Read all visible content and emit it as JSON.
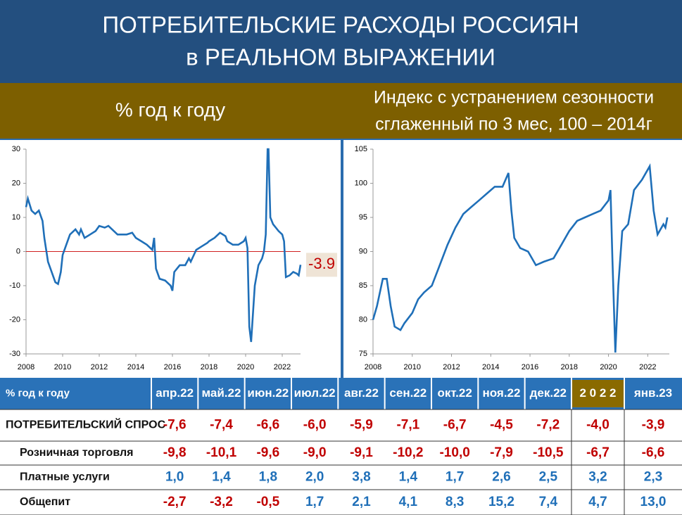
{
  "header": {
    "title": [
      "ПОТРЕБИТЕЛЬСКИЕ РАСХОДЫ РОССИЯН",
      "в РЕАЛЬНОМ ВЫРАЖЕНИИ"
    ]
  },
  "chart_data": [
    {
      "type": "line",
      "subtitle": [
        "% год к году"
      ],
      "x": [
        2008.0,
        2008.1,
        2008.3,
        2008.5,
        2008.7,
        2008.9,
        2009.0,
        2009.2,
        2009.4,
        2009.6,
        2009.75,
        2009.9,
        2010.0,
        2010.2,
        2010.4,
        2010.7,
        2010.9,
        2011.0,
        2011.2,
        2011.5,
        2011.8,
        2012.0,
        2012.3,
        2012.5,
        2012.8,
        2013.0,
        2013.5,
        2013.8,
        2014.0,
        2014.3,
        2014.6,
        2014.9,
        2015.0,
        2015.1,
        2015.3,
        2015.6,
        2015.9,
        2016.0,
        2016.1,
        2016.4,
        2016.7,
        2016.9,
        2017.0,
        2017.3,
        2017.6,
        2017.9,
        2018.0,
        2018.3,
        2018.6,
        2018.9,
        2019.0,
        2019.3,
        2019.6,
        2019.9,
        2020.0,
        2020.1,
        2020.2,
        2020.3,
        2020.5,
        2020.7,
        2020.9,
        2021.0,
        2021.1,
        2021.2,
        2021.25,
        2021.35,
        2021.5,
        2021.8,
        2022.0,
        2022.1,
        2022.2,
        2022.4,
        2022.6,
        2022.8,
        2022.9,
        2023.0
      ],
      "series": [
        {
          "color": "#1f6fb8",
          "values": [
            13,
            15.5,
            12,
            11,
            12,
            9,
            4,
            -3,
            -6,
            -9,
            -9.5,
            -6,
            -1,
            2,
            5,
            6.5,
            5,
            6.5,
            4,
            5,
            6,
            7.5,
            7,
            7.5,
            6,
            5,
            5,
            5.5,
            4,
            3,
            2,
            0.5,
            4,
            -5,
            -8,
            -8.5,
            -10,
            -11.5,
            -6,
            -4,
            -4,
            -2,
            -3,
            0.5,
            1.5,
            2.5,
            3,
            4,
            5.5,
            4.5,
            3,
            2,
            2,
            3,
            4,
            1,
            -22,
            -26.5,
            -10,
            -4,
            -2,
            0,
            5,
            30,
            30,
            10,
            8,
            6,
            5,
            3,
            -7.5,
            -7,
            -6,
            -6.5,
            -7,
            -3.9
          ]
        }
      ],
      "xlim": [
        2008,
        2023
      ],
      "ylim": [
        -30,
        30
      ],
      "xticks": [
        2008,
        2010,
        2012,
        2014,
        2016,
        2018,
        2020,
        2022
      ],
      "yticks": [
        -30,
        -20,
        -10,
        0,
        10,
        20,
        30
      ],
      "reference_line": {
        "value": 0,
        "color": "#d02020"
      },
      "annotation": -3.9
    },
    {
      "type": "line",
      "subtitle": [
        "Индекс с устранением сезонности",
        "сглаженный по 3 мес, 100 – 2014г"
      ],
      "x": [
        2008.0,
        2008.2,
        2008.5,
        2008.7,
        2008.9,
        2009.1,
        2009.4,
        2009.6,
        2010.0,
        2010.3,
        2010.6,
        2011.0,
        2011.4,
        2011.8,
        2012.2,
        2012.6,
        2013.0,
        2013.4,
        2013.8,
        2014.2,
        2014.6,
        2014.9,
        2015.05,
        2015.2,
        2015.5,
        2015.9,
        2016.3,
        2016.7,
        2017.2,
        2017.6,
        2018.0,
        2018.4,
        2018.8,
        2019.2,
        2019.6,
        2020.0,
        2020.1,
        2020.2,
        2020.35,
        2020.5,
        2020.7,
        2021.0,
        2021.3,
        2021.7,
        2022.1,
        2022.3,
        2022.5,
        2022.8,
        2022.9,
        2023.0
      ],
      "series": [
        {
          "color": "#1f6fb8",
          "values": [
            80,
            82,
            86,
            86,
            82,
            79,
            78.5,
            79.5,
            81,
            83,
            84,
            85,
            88,
            91,
            93.5,
            95.5,
            96.5,
            97.5,
            98.5,
            99.5,
            99.5,
            101.5,
            96,
            92,
            90.5,
            90,
            88,
            88.5,
            89,
            91,
            93,
            94.5,
            95,
            95.5,
            96,
            97.5,
            99,
            89,
            75.2,
            85,
            93,
            94,
            99,
            100.5,
            102.5,
            96,
            92.5,
            94,
            93.5,
            95
          ]
        }
      ],
      "xlim": [
        2008,
        2023.1
      ],
      "ylim": [
        75,
        105
      ],
      "xticks": [
        2008,
        2010,
        2012,
        2014,
        2016,
        2018,
        2020,
        2022
      ],
      "yticks": [
        75,
        80,
        85,
        90,
        95,
        100,
        105
      ]
    }
  ],
  "table": {
    "columns": [
      "% год к году",
      "апр.22",
      "май.22",
      "июн.22",
      "июл.22",
      "авг.22",
      "сен.22",
      "окт.22",
      "ноя.22",
      "дек.22",
      "2 0 2 2",
      "янв.23"
    ],
    "rows": [
      [
        "ПОТРЕБИТЕЛЬСКИЙ СПРОС",
        "-7,6",
        "-7,4",
        "-6,6",
        "-6,0",
        "-5,9",
        "-7,1",
        "-6,7",
        "-4,5",
        "-7,2",
        "-4,0",
        "-3,9"
      ],
      [
        "Розничная торговля",
        "-9,8",
        "-10,1",
        "-9,6",
        "-9,0",
        "-9,1",
        "-10,2",
        "-10,0",
        "-7,9",
        "-10,5",
        "-6,7",
        "-6,6"
      ],
      [
        "Платные услуги",
        "1,0",
        "1,4",
        "1,8",
        "2,0",
        "3,8",
        "1,4",
        "1,7",
        "2,6",
        "2,5",
        "3,2",
        "2,3"
      ],
      [
        "Общепит",
        "-2,7",
        "-3,2",
        "-0,5",
        "1,7",
        "2,1",
        "4,1",
        "8,3",
        "15,2",
        "7,4",
        "4,7",
        "13,0"
      ]
    ]
  }
}
